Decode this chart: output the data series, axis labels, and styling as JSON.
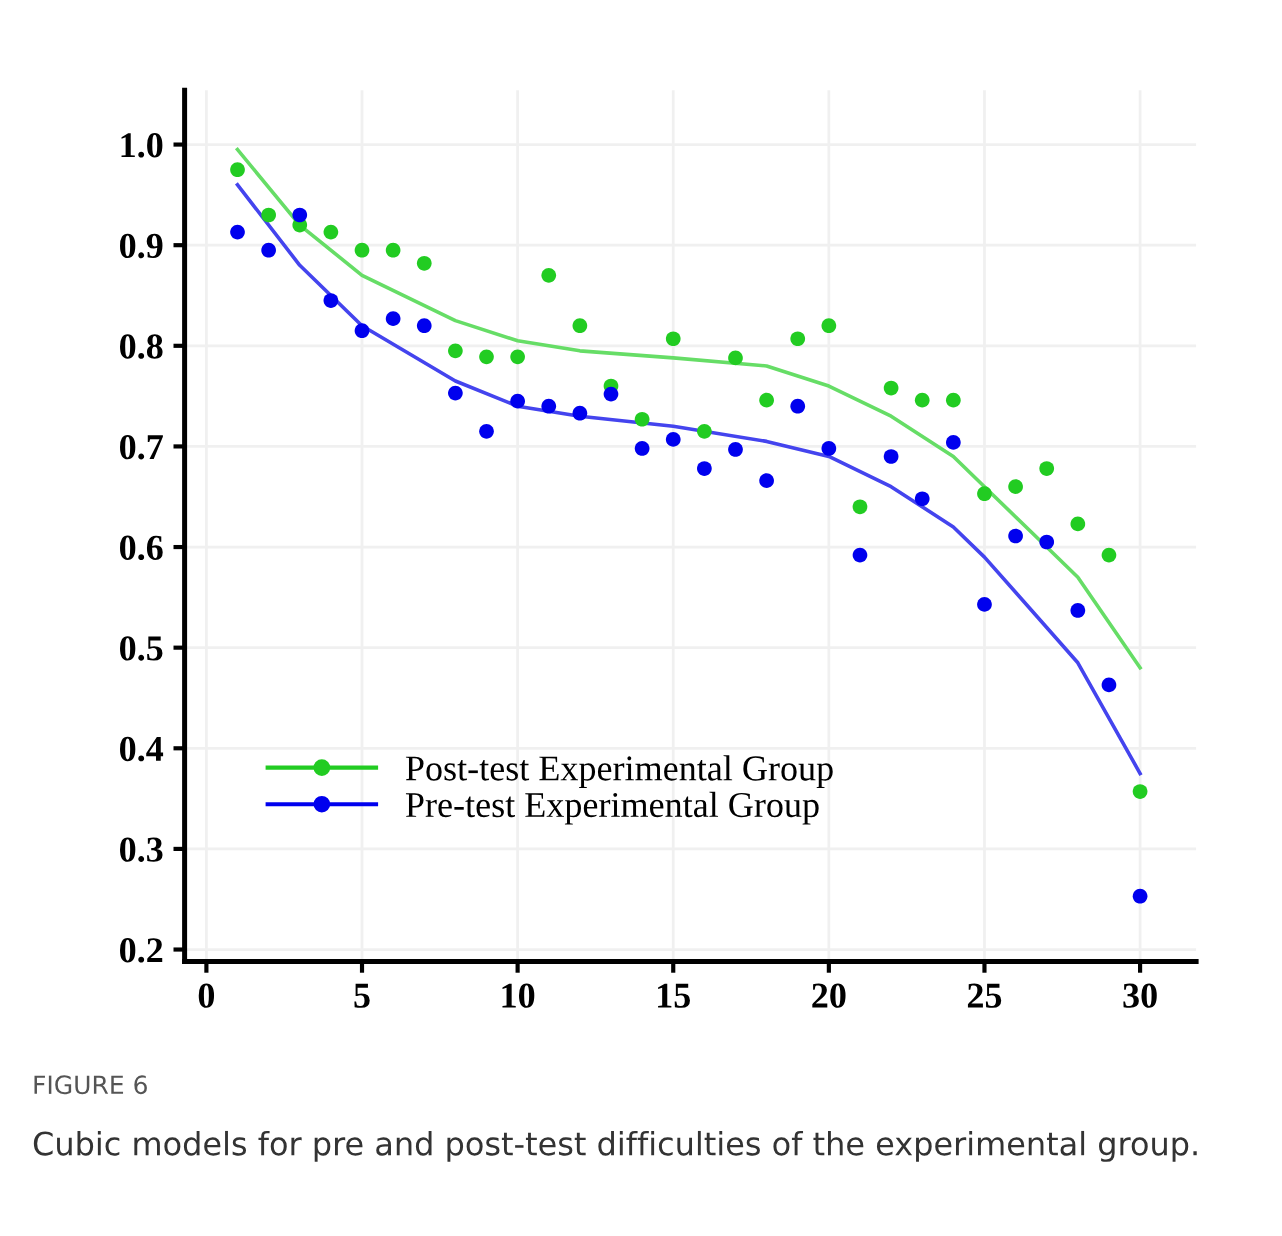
{
  "chart_data": {
    "type": "scatter",
    "xlim": [
      -0.7,
      31.8
    ],
    "ylim": [
      0.188,
      1.054
    ],
    "xticks": [
      0,
      5,
      10,
      15,
      20,
      25,
      30
    ],
    "yticks": [
      {
        "value": 0.2,
        "label": "0.2"
      },
      {
        "value": 0.3,
        "label": "0.3"
      },
      {
        "value": 0.4,
        "label": "0.4"
      },
      {
        "value": 0.5,
        "label": "0.5"
      },
      {
        "value": 0.6,
        "label": "0.6"
      },
      {
        "value": 0.7,
        "label": "0.7"
      },
      {
        "value": 0.8,
        "label": "0.8"
      },
      {
        "value": 0.9,
        "label": "0.9"
      },
      {
        "value": 1.0,
        "label": "1.0"
      }
    ],
    "grid": true,
    "legend": "bottom left",
    "marker": "circle",
    "series": [
      {
        "name": "Post-test Experimental Group",
        "color": "#22cc22",
        "x": [
          1,
          2,
          3,
          4,
          5,
          6,
          7,
          8,
          9,
          10,
          11,
          12,
          13,
          14,
          15,
          16,
          17,
          18,
          19,
          20,
          21,
          22,
          23,
          24,
          25,
          26,
          27,
          28,
          29,
          30
        ],
        "values": [
          0.975,
          0.93,
          0.92,
          0.913,
          0.895,
          0.895,
          0.882,
          0.795,
          0.789,
          0.789,
          0.87,
          0.82,
          0.76,
          0.727,
          0.807,
          0.715,
          0.788,
          0.746,
          0.807,
          0.82,
          0.64,
          0.758,
          0.746,
          0.746,
          0.653,
          0.66,
          0.678,
          0.623,
          0.592,
          0.357
        ]
      },
      {
        "name": "Pre-test Experimental Group",
        "color": "#0000ee",
        "x": [
          1,
          2,
          3,
          4,
          5,
          6,
          7,
          8,
          9,
          10,
          11,
          12,
          13,
          14,
          15,
          16,
          17,
          18,
          19,
          20,
          21,
          22,
          23,
          24,
          25,
          26,
          27,
          28,
          29,
          30
        ],
        "values": [
          0.913,
          0.895,
          0.93,
          0.845,
          0.815,
          0.827,
          0.82,
          0.753,
          0.715,
          0.745,
          0.74,
          0.733,
          0.752,
          0.698,
          0.707,
          0.678,
          0.697,
          0.666,
          0.74,
          0.698,
          0.592,
          0.69,
          0.648,
          0.704,
          0.543,
          0.611,
          0.605,
          0.537,
          0.463,
          0.253
        ]
      },
      {
        "type": "line",
        "marker": "none",
        "color": "#66dd66",
        "x": [
          1,
          3,
          5,
          8,
          10,
          12,
          15,
          18,
          20,
          22,
          24,
          25,
          27,
          28,
          30
        ],
        "values": [
          0.995,
          0.92,
          0.87,
          0.825,
          0.805,
          0.795,
          0.788,
          0.78,
          0.76,
          0.73,
          0.69,
          0.66,
          0.6,
          0.57,
          0.48
        ]
      },
      {
        "type": "line",
        "marker": "none",
        "color": "#4444ee",
        "x": [
          1,
          3,
          5,
          8,
          10,
          12,
          15,
          18,
          20,
          22,
          24,
          25,
          27,
          28,
          30
        ],
        "values": [
          0.96,
          0.88,
          0.82,
          0.765,
          0.74,
          0.73,
          0.72,
          0.705,
          0.69,
          0.66,
          0.62,
          0.59,
          0.52,
          0.485,
          0.375
        ]
      }
    ],
    "annotations": [
      "FIGURE 6",
      "Cubic models for pre and post-test difficulties of the experimental group."
    ]
  }
}
